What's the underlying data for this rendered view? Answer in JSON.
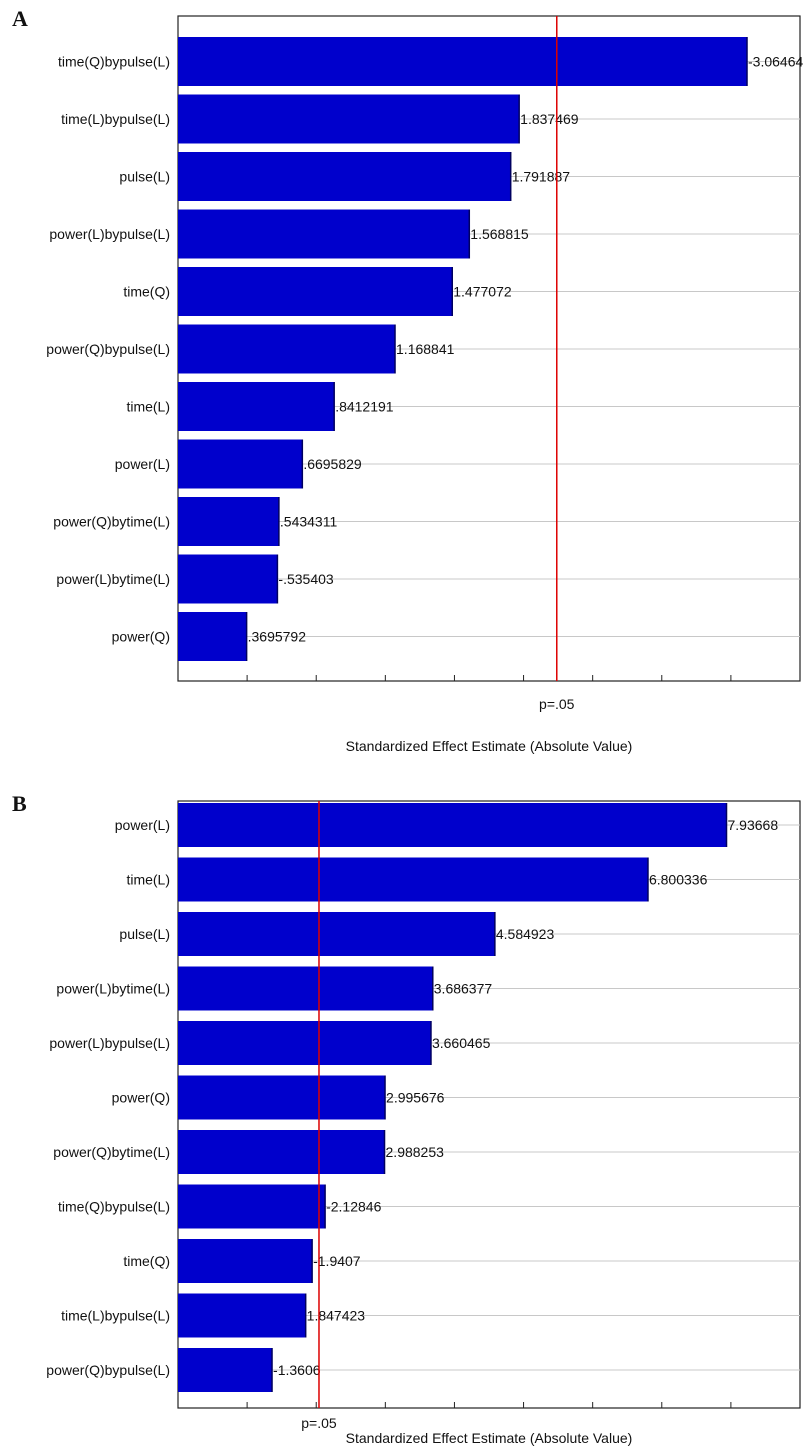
{
  "chart_data": [
    {
      "type": "bar",
      "orientation": "horizontal",
      "panel_label": "A",
      "xlabel": "Standardized Effect Estimate (Absolute Value)",
      "threshold_label": "p=.05",
      "threshold": 2.04,
      "xlim": [
        0,
        3.35
      ],
      "categories": [
        "time(Q)bypulse(L)",
        "time(L)bypulse(L)",
        "pulse(L)",
        "power(L)bypulse(L)",
        "time(Q)",
        "power(Q)bypulse(L)",
        "time(L)",
        "power(L)",
        "power(Q)bytime(L)",
        "power(L)bytime(L)",
        "power(Q)"
      ],
      "values": [
        3.06464,
        1.837469,
        1.791887,
        1.568815,
        1.477072,
        1.168841,
        0.8412191,
        0.6695829,
        0.5434311,
        0.535403,
        0.3695792
      ],
      "value_labels": [
        "-3.06464",
        "1.837469",
        "1.791887",
        "1.568815",
        "1.477072",
        "1.168841",
        ".8412191",
        ".6695829",
        ".5434311",
        "-.535403",
        ".3695792"
      ],
      "colors": {
        "bar": "#0000cc",
        "threshold": "#dd0000",
        "grid": "#c8c8c8"
      }
    },
    {
      "type": "bar",
      "orientation": "horizontal",
      "panel_label": "B",
      "xlabel": "Standardized Effect Estimate (Absolute Value)",
      "threshold_label": "p=.05",
      "threshold": 2.04,
      "xlim": [
        0,
        9.0
      ],
      "categories": [
        "power(L)",
        "time(L)",
        "pulse(L)",
        "power(L)bytime(L)",
        "power(L)bypulse(L)",
        "power(Q)",
        "power(Q)bytime(L)",
        "time(Q)bypulse(L)",
        "time(Q)",
        "time(L)bypulse(L)",
        "power(Q)bypulse(L)"
      ],
      "values": [
        7.93668,
        6.800336,
        4.584923,
        3.686377,
        3.660465,
        2.995676,
        2.988253,
        2.12846,
        1.9407,
        1.847423,
        1.3606
      ],
      "value_labels": [
        "7.93668",
        "6.800336",
        "4.584923",
        "3.686377",
        "3.660465",
        "2.995676",
        "2.988253",
        "-2.12846",
        "-1.9407",
        "1.847423",
        "-1.3606"
      ],
      "colors": {
        "bar": "#0000cc",
        "threshold": "#dd0000",
        "grid": "#c8c8c8"
      }
    }
  ]
}
